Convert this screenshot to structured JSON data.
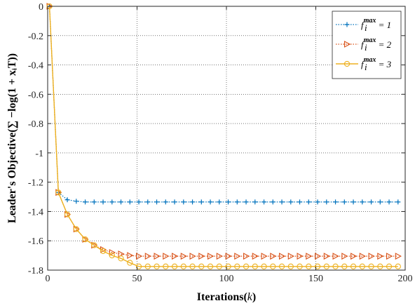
{
  "chart_data": {
    "type": "line",
    "title": "",
    "xlabel": "Iterations(",
    "xlabel_var": "k",
    "xlabel_close": ")",
    "ylabel": "Leader's Objective(∑ −log(1 + xᵢT))",
    "xlim": [
      0,
      200
    ],
    "ylim": [
      -1.8,
      0
    ],
    "xticks": [
      0,
      50,
      100,
      150,
      200
    ],
    "yticks": [
      0,
      -0.2,
      -0.4,
      -0.6,
      -0.8,
      -1,
      -1.2,
      -1.4,
      -1.6,
      -1.8
    ],
    "xtick_labels": [
      "0",
      "50",
      "100",
      "150",
      "200"
    ],
    "ytick_labels": [
      "0",
      "-0.2",
      "-0.4",
      "-0.6",
      "-0.8",
      "-1",
      "-1.2",
      "-1.4",
      "-1.6",
      "-1.8"
    ],
    "grid": "on (dotted)",
    "legend_position": "top-right",
    "series": [
      {
        "name": "f_i^max = 1",
        "legend_base": "f",
        "legend_sub": "i",
        "legend_sup": "max",
        "legend_rest": " = 1",
        "color": "#0072BD",
        "marker": "plus",
        "linestyle": "dotted",
        "x": [
          1,
          6,
          11,
          16,
          21,
          26,
          31,
          36,
          41,
          46,
          51,
          56,
          61,
          66,
          71,
          76,
          81,
          86,
          91,
          96,
          101,
          106,
          111,
          116,
          121,
          126,
          131,
          136,
          141,
          146,
          151,
          156,
          161,
          166,
          171,
          176,
          181,
          186,
          191,
          196
        ],
        "y": [
          0,
          -1.27,
          -1.32,
          -1.33,
          -1.335,
          -1.335,
          -1.335,
          -1.335,
          -1.335,
          -1.335,
          -1.335,
          -1.335,
          -1.335,
          -1.335,
          -1.335,
          -1.335,
          -1.335,
          -1.335,
          -1.335,
          -1.335,
          -1.335,
          -1.335,
          -1.335,
          -1.335,
          -1.335,
          -1.335,
          -1.335,
          -1.335,
          -1.335,
          -1.335,
          -1.335,
          -1.335,
          -1.335,
          -1.335,
          -1.335,
          -1.335,
          -1.335,
          -1.335,
          -1.335,
          -1.335
        ]
      },
      {
        "name": "f_i^max = 2",
        "legend_base": "f",
        "legend_sub": "i",
        "legend_sup": "max",
        "legend_rest": " = 2",
        "color": "#D95319",
        "marker": "triangle-right",
        "linestyle": "dotted",
        "x": [
          1,
          6,
          11,
          16,
          21,
          26,
          31,
          36,
          41,
          46,
          51,
          56,
          61,
          66,
          71,
          76,
          81,
          86,
          91,
          96,
          101,
          106,
          111,
          116,
          121,
          126,
          131,
          136,
          141,
          146,
          151,
          156,
          161,
          166,
          171,
          176,
          181,
          186,
          191,
          196
        ],
        "y": [
          0,
          -1.27,
          -1.42,
          -1.52,
          -1.59,
          -1.63,
          -1.66,
          -1.68,
          -1.69,
          -1.7,
          -1.705,
          -1.705,
          -1.705,
          -1.705,
          -1.705,
          -1.705,
          -1.705,
          -1.705,
          -1.705,
          -1.705,
          -1.705,
          -1.705,
          -1.705,
          -1.705,
          -1.705,
          -1.705,
          -1.705,
          -1.705,
          -1.705,
          -1.705,
          -1.705,
          -1.705,
          -1.705,
          -1.705,
          -1.705,
          -1.705,
          -1.705,
          -1.705,
          -1.705,
          -1.705
        ]
      },
      {
        "name": "f_i^max = 3",
        "legend_base": "f",
        "legend_sub": "i",
        "legend_sup": "max",
        "legend_rest": " = 3",
        "color": "#EDB120",
        "marker": "circle",
        "linestyle": "solid",
        "x": [
          1,
          6,
          11,
          16,
          21,
          26,
          31,
          36,
          41,
          46,
          51,
          56,
          61,
          66,
          71,
          76,
          81,
          86,
          91,
          96,
          101,
          106,
          111,
          116,
          121,
          126,
          131,
          136,
          141,
          146,
          151,
          156,
          161,
          166,
          171,
          176,
          181,
          186,
          191,
          196
        ],
        "y": [
          0,
          -1.27,
          -1.42,
          -1.52,
          -1.59,
          -1.63,
          -1.67,
          -1.7,
          -1.72,
          -1.75,
          -1.775,
          -1.775,
          -1.775,
          -1.775,
          -1.775,
          -1.775,
          -1.775,
          -1.775,
          -1.775,
          -1.775,
          -1.775,
          -1.775,
          -1.775,
          -1.775,
          -1.775,
          -1.775,
          -1.775,
          -1.775,
          -1.775,
          -1.775,
          -1.775,
          -1.775,
          -1.775,
          -1.775,
          -1.775,
          -1.775,
          -1.775,
          -1.775,
          -1.775,
          -1.775
        ]
      }
    ]
  }
}
